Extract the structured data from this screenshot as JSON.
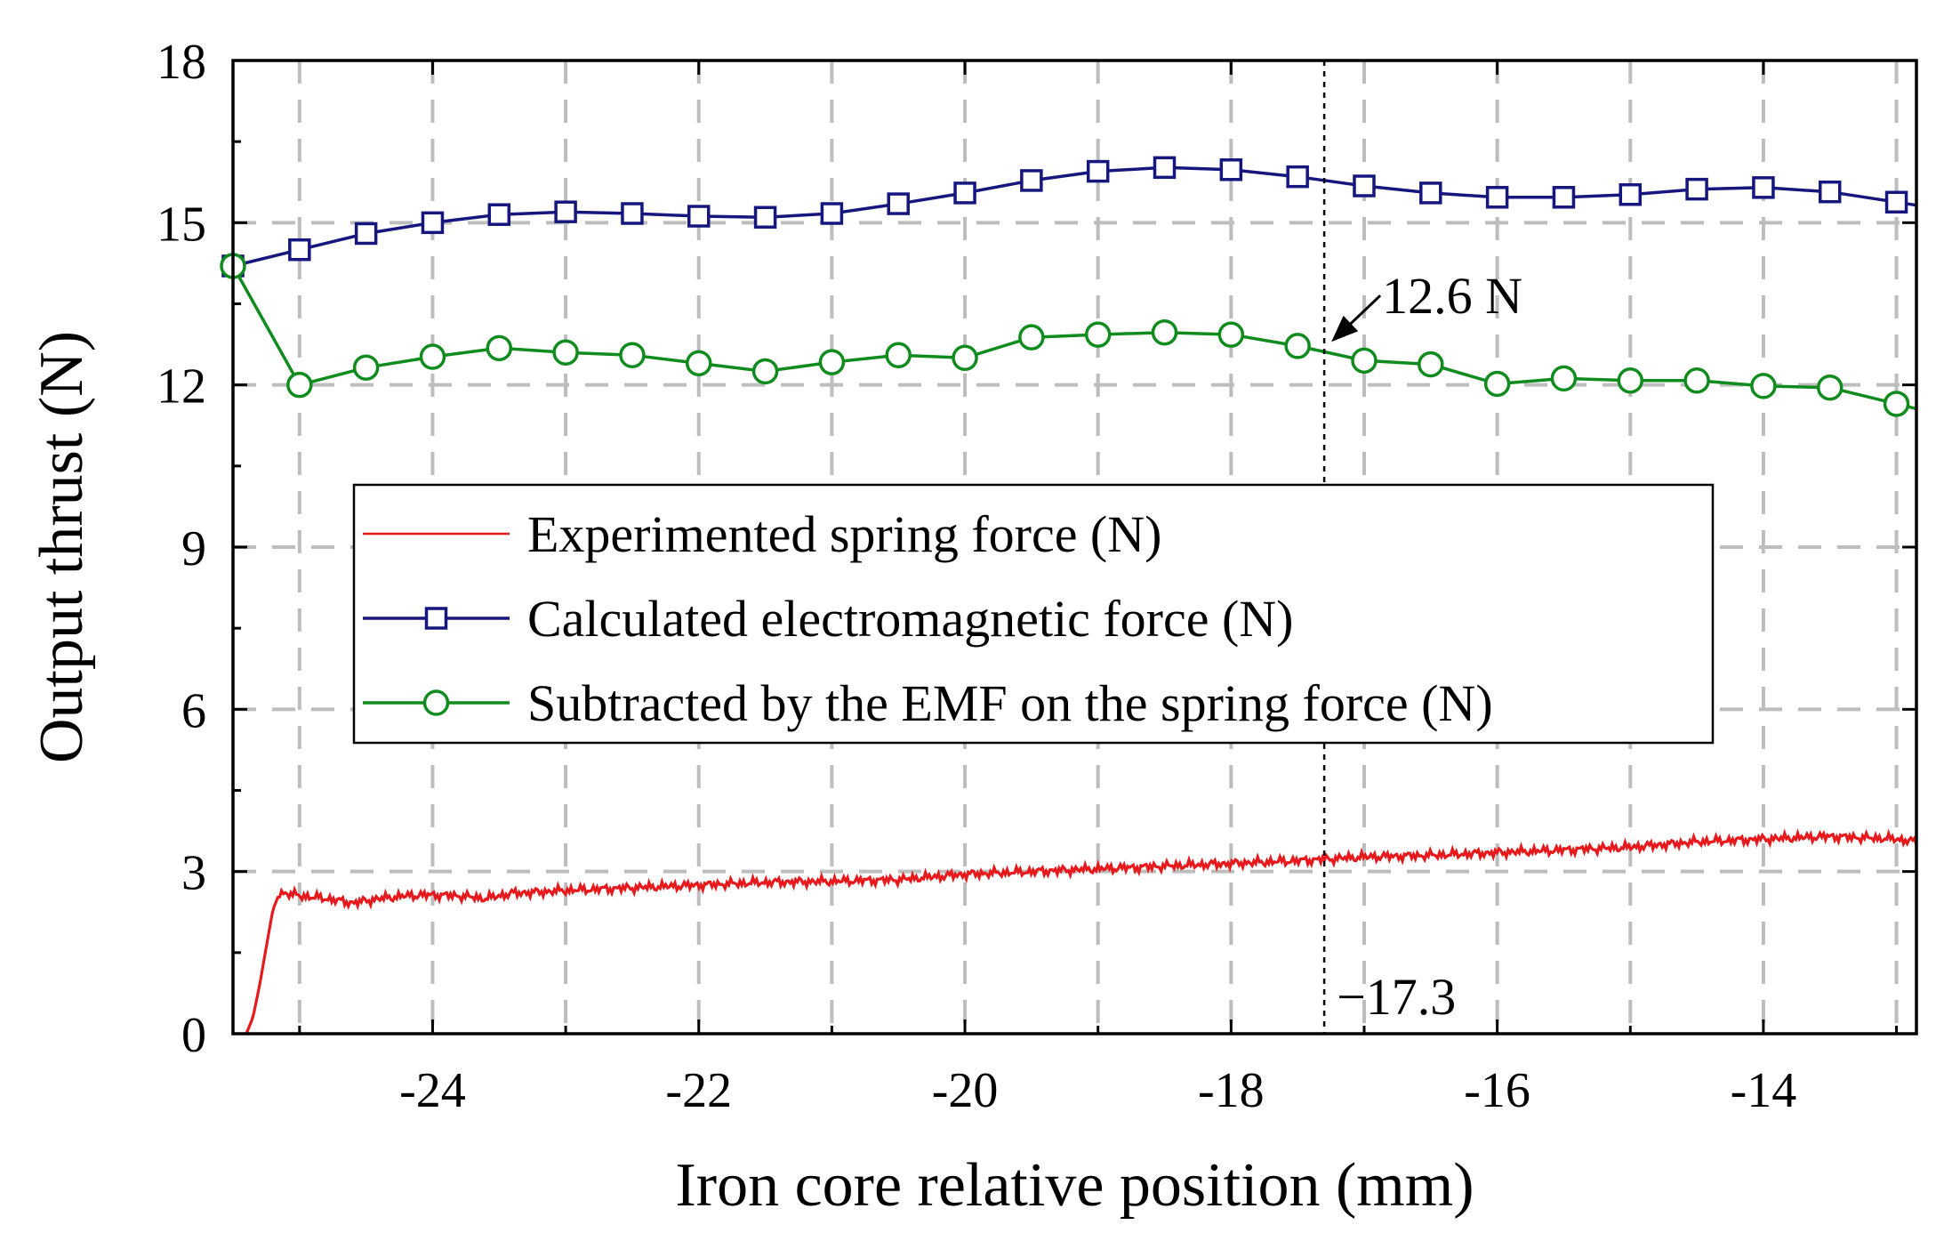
{
  "chart_data": {
    "type": "line",
    "xlabel": "Iron core relative position (mm)",
    "ylabel": "Output thrust (N)",
    "xlim": [
      -25.5,
      -12.85
    ],
    "ylim": [
      0,
      18
    ],
    "xticks": [
      -24,
      -22,
      -20,
      -18,
      -16,
      -14
    ],
    "xtick_labels": [
      "-24",
      "-22",
      "-20",
      "-18",
      "-16",
      "-14"
    ],
    "yticks": [
      0,
      3,
      6,
      9,
      12,
      15,
      18
    ],
    "ytick_labels": [
      "0",
      "3",
      "6",
      "9",
      "12",
      "15",
      "18"
    ],
    "grid": true,
    "legend_position": "center-left",
    "series": [
      {
        "name": "Experimented spring force (N)",
        "marker": "none",
        "color": "#e8191c",
        "x": [
          -25.4,
          -25.35,
          -25.3,
          -25.25,
          -25.2,
          -25.15,
          -25.1,
          -25.0,
          -24.8,
          -24.6,
          -24.4,
          -24.2,
          -24.0,
          -23.8,
          -23.6,
          -23.4,
          -23.2,
          -23.0,
          -22.5,
          -22.0,
          -21.5,
          -21.0,
          -20.5,
          -20.0,
          -19.5,
          -19.0,
          -18.5,
          -18.0,
          -17.5,
          -17.0,
          -16.5,
          -16.0,
          -15.5,
          -15.0,
          -14.5,
          -14.0,
          -13.5,
          -13.0,
          -12.85
        ],
        "y": [
          0.0,
          0.3,
          0.9,
          1.6,
          2.3,
          2.6,
          2.6,
          2.55,
          2.5,
          2.42,
          2.5,
          2.55,
          2.57,
          2.55,
          2.5,
          2.6,
          2.62,
          2.65,
          2.7,
          2.75,
          2.8,
          2.82,
          2.85,
          2.95,
          3.0,
          3.05,
          3.1,
          3.15,
          3.2,
          3.27,
          3.3,
          3.35,
          3.4,
          3.45,
          3.55,
          3.6,
          3.65,
          3.6,
          3.55
        ]
      },
      {
        "name": "Calculated electromagnetic force (N)",
        "marker": "square",
        "color": "#16177e",
        "x": [
          -25.5,
          -25.0,
          -24.5,
          -24.0,
          -23.5,
          -23.0,
          -22.5,
          -22.0,
          -21.5,
          -21.0,
          -20.5,
          -20.0,
          -19.5,
          -19.0,
          -18.5,
          -18.0,
          -17.5,
          -17.0,
          -16.5,
          -16.0,
          -15.5,
          -15.0,
          -14.5,
          -14.0,
          -13.5,
          -13.0
        ],
        "y": [
          14.2,
          14.5,
          14.8,
          15.0,
          15.15,
          15.2,
          15.17,
          15.12,
          15.1,
          15.17,
          15.35,
          15.55,
          15.78,
          15.95,
          16.02,
          15.98,
          15.85,
          15.68,
          15.55,
          15.47,
          15.47,
          15.52,
          15.62,
          15.65,
          15.57,
          15.38
        ]
      },
      {
        "name": "Subtracted by the EMF on the spring force (N)",
        "marker": "circle",
        "color": "#0f8c1d",
        "x": [
          -25.5,
          -25.0,
          -24.5,
          -24.0,
          -23.5,
          -23.0,
          -22.5,
          -22.0,
          -21.5,
          -21.0,
          -20.5,
          -20.0,
          -19.5,
          -19.0,
          -18.5,
          -18.0,
          -17.5,
          -17.0,
          -16.5,
          -16.0,
          -15.5,
          -15.0,
          -14.5,
          -14.0,
          -13.5,
          -13.0
        ],
        "y": [
          14.2,
          12.0,
          12.32,
          12.52,
          12.68,
          12.6,
          12.55,
          12.4,
          12.25,
          12.42,
          12.55,
          12.5,
          12.88,
          12.93,
          12.97,
          12.93,
          12.72,
          12.45,
          12.38,
          12.02,
          12.12,
          12.08,
          12.08,
          11.98,
          11.95,
          11.65
        ]
      }
    ],
    "annotations": [
      {
        "text": "12.6 N",
        "x": -17.3,
        "y": 12.6,
        "kind": "arrow-label"
      },
      {
        "text": "−17.3",
        "x": -17.3,
        "kind": "vertical-dotted-line-label"
      }
    ]
  }
}
